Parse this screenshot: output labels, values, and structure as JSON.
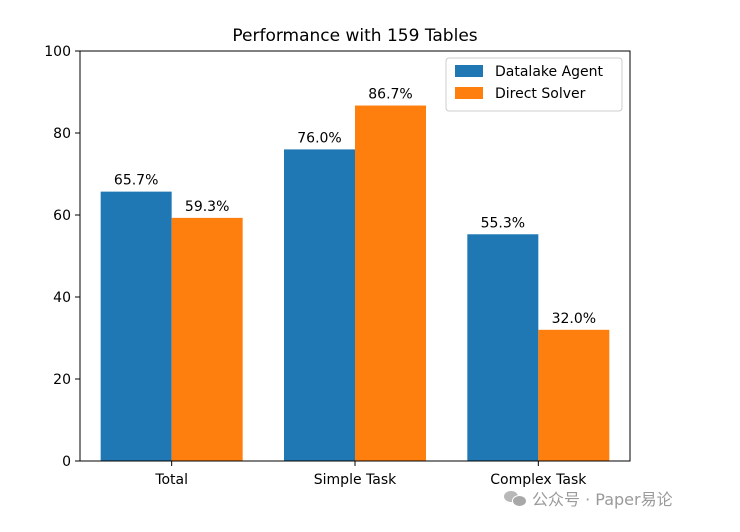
{
  "chart_data": {
    "type": "bar",
    "title": "Performance with 159 Tables",
    "categories": [
      "Total",
      "Simple Task",
      "Complex Task"
    ],
    "series": [
      {
        "name": "Datalake Agent",
        "values": [
          65.7,
          76.0,
          55.3
        ],
        "labels": [
          "65.7%",
          "76.0%",
          "55.3%"
        ],
        "color": "#1f77b4"
      },
      {
        "name": "Direct Solver",
        "values": [
          59.3,
          86.7,
          32.0
        ],
        "labels": [
          "59.3%",
          "86.7%",
          "32.0%"
        ],
        "color": "#ff7f0e"
      }
    ],
    "ylim": [
      0,
      100
    ],
    "yticks": [
      "0",
      "20",
      "40",
      "60",
      "80",
      "100"
    ],
    "xlabel": "",
    "ylabel": "",
    "grid": false,
    "legend": "top-right"
  },
  "watermark": {
    "text": "公众号 · Paper易论",
    "icon": "wechat-icon"
  }
}
